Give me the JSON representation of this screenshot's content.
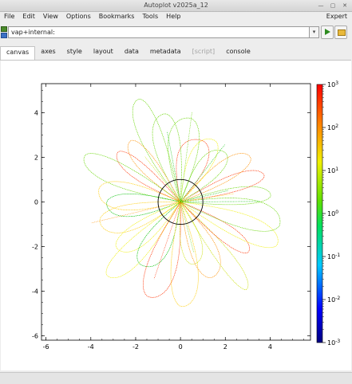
{
  "window": {
    "title": "Autoplot v2025a_12"
  },
  "menubar": {
    "items": [
      "File",
      "Edit",
      "View",
      "Options",
      "Bookmarks",
      "Tools",
      "Help"
    ],
    "expert_label": "Expert"
  },
  "url": {
    "value": "vap+internal:"
  },
  "tabs": [
    {
      "label": "canvas",
      "active": true
    },
    {
      "label": "axes"
    },
    {
      "label": "style"
    },
    {
      "label": "layout"
    },
    {
      "label": "data"
    },
    {
      "label": "metadata"
    },
    {
      "label": "[script]",
      "disabled": true
    },
    {
      "label": "console"
    }
  ],
  "chart_data": {
    "type": "scatter",
    "description_free": true,
    "x_ticks": [
      "-6",
      "-4",
      "-2",
      "0",
      "2",
      "4"
    ],
    "y_ticks": [
      "4",
      "2",
      "0",
      "-2",
      "-4",
      "-6"
    ],
    "xlim": [
      -6.2,
      5.8
    ],
    "ylim": [
      -6.2,
      5.3
    ],
    "colorbar": {
      "scale": "log",
      "range": [
        0.001,
        1000
      ],
      "tick_exponents": [
        "3",
        "2",
        "1",
        "0",
        "-1",
        "-2",
        "-3"
      ]
    },
    "circle": {
      "center": [
        0,
        0
      ],
      "radius": 1
    },
    "petal_count": 26,
    "palette": [
      "#00c000",
      "#66d600",
      "#c9e000",
      "#f0f000",
      "#ffcc00",
      "#ff9000",
      "#ff3000"
    ]
  }
}
